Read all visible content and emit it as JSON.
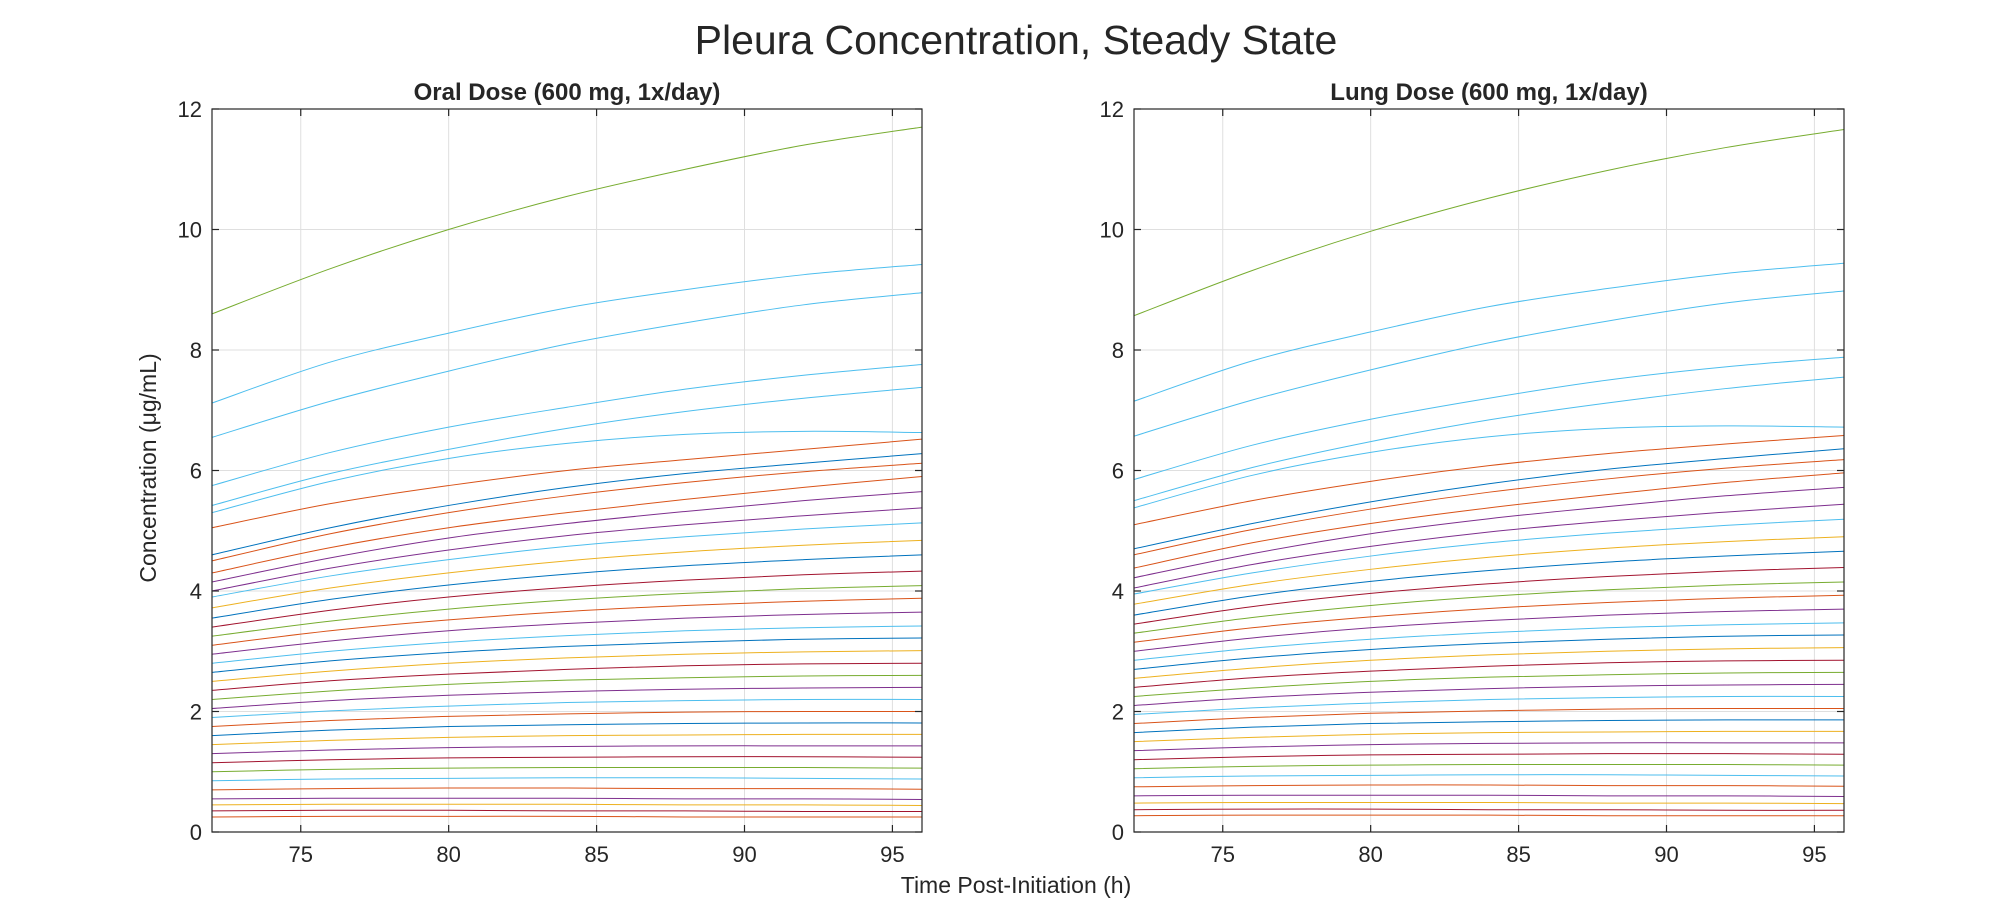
{
  "figure": {
    "title": "Pleura Concentration, Steady State",
    "xlabel": "Time Post-Initiation (h)",
    "ylabel": "Concentration  (μg/mL)"
  },
  "palette": [
    "#0072bd",
    "#d95319",
    "#edb120",
    "#7e2f8e",
    "#77ac30",
    "#4dbeee",
    "#a2142f"
  ],
  "chart_data": [
    {
      "type": "line",
      "title": "Oral Dose (600 mg, 1x/day)",
      "xlabel": "Time Post-Initiation (h)",
      "ylabel": "Concentration  (μg/mL)",
      "xlim": [
        72,
        96
      ],
      "ylim": [
        0,
        12
      ],
      "xticks": [
        75,
        80,
        85,
        90,
        95
      ],
      "yticks": [
        0,
        2,
        4,
        6,
        8,
        10,
        12
      ],
      "grid": true,
      "x": [
        72,
        76,
        80,
        84,
        88,
        92,
        96
      ],
      "series": [
        {
          "color": "#77ac30",
          "values": [
            8.6,
            9.35,
            10.0,
            10.55,
            11.0,
            11.4,
            11.7
          ]
        },
        {
          "color": "#4dbeee",
          "values": [
            7.12,
            7.8,
            8.28,
            8.7,
            9.0,
            9.25,
            9.42
          ]
        },
        {
          "color": "#4dbeee",
          "values": [
            6.55,
            7.15,
            7.65,
            8.1,
            8.45,
            8.75,
            8.95
          ]
        },
        {
          "color": "#4dbeee",
          "values": [
            5.75,
            6.3,
            6.72,
            7.05,
            7.35,
            7.58,
            7.76
          ]
        },
        {
          "color": "#4dbeee",
          "values": [
            5.42,
            5.95,
            6.35,
            6.7,
            6.98,
            7.2,
            7.38
          ]
        },
        {
          "color": "#4dbeee",
          "values": [
            5.3,
            5.82,
            6.2,
            6.45,
            6.6,
            6.65,
            6.63
          ]
        },
        {
          "color": "#d95319",
          "values": [
            5.05,
            5.45,
            5.75,
            6.0,
            6.18,
            6.35,
            6.52
          ]
        },
        {
          "color": "#0072bd",
          "values": [
            4.6,
            5.05,
            5.42,
            5.72,
            5.95,
            6.12,
            6.28
          ]
        },
        {
          "color": "#d95319",
          "values": [
            4.5,
            4.95,
            5.3,
            5.58,
            5.8,
            5.98,
            6.12
          ]
        },
        {
          "color": "#d95319",
          "values": [
            4.3,
            4.72,
            5.05,
            5.3,
            5.52,
            5.72,
            5.9
          ]
        },
        {
          "color": "#7e2f8e",
          "values": [
            4.15,
            4.55,
            4.88,
            5.12,
            5.32,
            5.5,
            5.65
          ]
        },
        {
          "color": "#7e2f8e",
          "values": [
            4.0,
            4.38,
            4.68,
            4.92,
            5.1,
            5.25,
            5.38
          ]
        },
        {
          "color": "#4dbeee",
          "values": [
            3.9,
            4.25,
            4.52,
            4.74,
            4.9,
            5.03,
            5.13
          ]
        },
        {
          "color": "#edb120",
          "values": [
            3.72,
            4.05,
            4.3,
            4.5,
            4.65,
            4.76,
            4.84
          ]
        },
        {
          "color": "#0072bd",
          "values": [
            3.55,
            3.86,
            4.1,
            4.28,
            4.42,
            4.52,
            4.6
          ]
        },
        {
          "color": "#a2142f",
          "values": [
            3.4,
            3.68,
            3.9,
            4.06,
            4.18,
            4.27,
            4.33
          ]
        },
        {
          "color": "#77ac30",
          "values": [
            3.25,
            3.5,
            3.7,
            3.85,
            3.96,
            4.04,
            4.09
          ]
        },
        {
          "color": "#d95319",
          "values": [
            3.1,
            3.34,
            3.52,
            3.66,
            3.76,
            3.83,
            3.88
          ]
        },
        {
          "color": "#7e2f8e",
          "values": [
            2.95,
            3.17,
            3.34,
            3.46,
            3.55,
            3.61,
            3.65
          ]
        },
        {
          "color": "#4dbeee",
          "values": [
            2.8,
            3.0,
            3.15,
            3.26,
            3.34,
            3.39,
            3.42
          ]
        },
        {
          "color": "#0072bd",
          "values": [
            2.65,
            2.84,
            2.98,
            3.08,
            3.15,
            3.2,
            3.22
          ]
        },
        {
          "color": "#edb120",
          "values": [
            2.5,
            2.67,
            2.8,
            2.89,
            2.95,
            2.99,
            3.01
          ]
        },
        {
          "color": "#a2142f",
          "values": [
            2.35,
            2.51,
            2.62,
            2.7,
            2.76,
            2.79,
            2.8
          ]
        },
        {
          "color": "#77ac30",
          "values": [
            2.2,
            2.34,
            2.45,
            2.52,
            2.56,
            2.59,
            2.6
          ]
        },
        {
          "color": "#7e2f8e",
          "values": [
            2.05,
            2.18,
            2.27,
            2.33,
            2.37,
            2.39,
            2.4
          ]
        },
        {
          "color": "#4dbeee",
          "values": [
            1.9,
            2.01,
            2.09,
            2.15,
            2.18,
            2.2,
            2.2
          ]
        },
        {
          "color": "#d95319",
          "values": [
            1.75,
            1.85,
            1.92,
            1.96,
            1.99,
            2.0,
            2.0
          ]
        },
        {
          "color": "#0072bd",
          "values": [
            1.6,
            1.69,
            1.75,
            1.78,
            1.8,
            1.81,
            1.81
          ]
        },
        {
          "color": "#edb120",
          "values": [
            1.45,
            1.52,
            1.57,
            1.6,
            1.61,
            1.62,
            1.62
          ]
        },
        {
          "color": "#7e2f8e",
          "values": [
            1.3,
            1.36,
            1.4,
            1.42,
            1.43,
            1.43,
            1.43
          ]
        },
        {
          "color": "#a2142f",
          "values": [
            1.15,
            1.2,
            1.23,
            1.24,
            1.25,
            1.25,
            1.24
          ]
        },
        {
          "color": "#77ac30",
          "values": [
            1.0,
            1.04,
            1.06,
            1.07,
            1.07,
            1.07,
            1.06
          ]
        },
        {
          "color": "#4dbeee",
          "values": [
            0.85,
            0.88,
            0.89,
            0.9,
            0.9,
            0.89,
            0.88
          ]
        },
        {
          "color": "#d95319",
          "values": [
            0.7,
            0.72,
            0.73,
            0.73,
            0.72,
            0.72,
            0.71
          ]
        },
        {
          "color": "#7e2f8e",
          "values": [
            0.55,
            0.56,
            0.56,
            0.56,
            0.55,
            0.55,
            0.54
          ]
        },
        {
          "color": "#edb120",
          "values": [
            0.45,
            0.46,
            0.46,
            0.46,
            0.45,
            0.45,
            0.44
          ]
        },
        {
          "color": "#a2142f",
          "values": [
            0.35,
            0.36,
            0.36,
            0.35,
            0.35,
            0.34,
            0.34
          ]
        },
        {
          "color": "#d95319",
          "values": [
            0.25,
            0.26,
            0.26,
            0.26,
            0.25,
            0.25,
            0.25
          ]
        }
      ]
    },
    {
      "type": "line",
      "title": "Lung Dose (600 mg, 1x/day)",
      "xlabel": "Time Post-Initiation (h)",
      "ylabel": "Concentration  (μg/mL)",
      "xlim": [
        72,
        96
      ],
      "ylim": [
        0,
        12
      ],
      "xticks": [
        75,
        80,
        85,
        90,
        95
      ],
      "yticks": [
        0,
        2,
        4,
        6,
        8,
        10,
        12
      ],
      "grid": true,
      "x": [
        72,
        76,
        80,
        84,
        88,
        92,
        96
      ],
      "series": [
        {
          "color": "#77ac30",
          "values": [
            8.57,
            9.32,
            9.97,
            10.52,
            10.98,
            11.36,
            11.66
          ]
        },
        {
          "color": "#4dbeee",
          "values": [
            7.15,
            7.82,
            8.3,
            8.72,
            9.02,
            9.27,
            9.44
          ]
        },
        {
          "color": "#4dbeee",
          "values": [
            6.57,
            7.17,
            7.67,
            8.12,
            8.48,
            8.78,
            8.98
          ]
        },
        {
          "color": "#4dbeee",
          "values": [
            5.85,
            6.42,
            6.85,
            7.2,
            7.5,
            7.72,
            7.88
          ]
        },
        {
          "color": "#4dbeee",
          "values": [
            5.5,
            6.05,
            6.48,
            6.84,
            7.12,
            7.36,
            7.55
          ]
        },
        {
          "color": "#4dbeee",
          "values": [
            5.38,
            5.92,
            6.3,
            6.56,
            6.7,
            6.74,
            6.72
          ]
        },
        {
          "color": "#d95319",
          "values": [
            5.1,
            5.5,
            5.82,
            6.08,
            6.28,
            6.44,
            6.58
          ]
        },
        {
          "color": "#0072bd",
          "values": [
            4.7,
            5.12,
            5.48,
            5.78,
            6.02,
            6.2,
            6.36
          ]
        },
        {
          "color": "#d95319",
          "values": [
            4.6,
            5.02,
            5.36,
            5.64,
            5.86,
            6.04,
            6.18
          ]
        },
        {
          "color": "#d95319",
          "values": [
            4.38,
            4.8,
            5.12,
            5.38,
            5.6,
            5.8,
            5.96
          ]
        },
        {
          "color": "#7e2f8e",
          "values": [
            4.22,
            4.62,
            4.95,
            5.2,
            5.4,
            5.58,
            5.72
          ]
        },
        {
          "color": "#7e2f8e",
          "values": [
            4.05,
            4.44,
            4.74,
            4.98,
            5.16,
            5.31,
            5.44
          ]
        },
        {
          "color": "#4dbeee",
          "values": [
            3.95,
            4.3,
            4.58,
            4.8,
            4.96,
            5.09,
            5.19
          ]
        },
        {
          "color": "#edb120",
          "values": [
            3.78,
            4.11,
            4.36,
            4.56,
            4.71,
            4.82,
            4.9
          ]
        },
        {
          "color": "#0072bd",
          "values": [
            3.6,
            3.92,
            4.16,
            4.34,
            4.48,
            4.58,
            4.66
          ]
        },
        {
          "color": "#a2142f",
          "values": [
            3.45,
            3.74,
            3.96,
            4.12,
            4.24,
            4.33,
            4.39
          ]
        },
        {
          "color": "#77ac30",
          "values": [
            3.3,
            3.56,
            3.76,
            3.91,
            4.02,
            4.1,
            4.15
          ]
        },
        {
          "color": "#d95319",
          "values": [
            3.15,
            3.39,
            3.57,
            3.71,
            3.81,
            3.88,
            3.93
          ]
        },
        {
          "color": "#7e2f8e",
          "values": [
            3.0,
            3.22,
            3.39,
            3.51,
            3.6,
            3.66,
            3.7
          ]
        },
        {
          "color": "#4dbeee",
          "values": [
            2.85,
            3.05,
            3.2,
            3.31,
            3.39,
            3.44,
            3.47
          ]
        },
        {
          "color": "#0072bd",
          "values": [
            2.7,
            2.89,
            3.03,
            3.13,
            3.2,
            3.25,
            3.27
          ]
        },
        {
          "color": "#edb120",
          "values": [
            2.55,
            2.72,
            2.85,
            2.94,
            3.0,
            3.04,
            3.06
          ]
        },
        {
          "color": "#a2142f",
          "values": [
            2.4,
            2.56,
            2.67,
            2.75,
            2.81,
            2.84,
            2.85
          ]
        },
        {
          "color": "#77ac30",
          "values": [
            2.25,
            2.39,
            2.5,
            2.57,
            2.61,
            2.64,
            2.65
          ]
        },
        {
          "color": "#7e2f8e",
          "values": [
            2.1,
            2.23,
            2.32,
            2.38,
            2.42,
            2.44,
            2.45
          ]
        },
        {
          "color": "#4dbeee",
          "values": [
            1.95,
            2.06,
            2.14,
            2.2,
            2.23,
            2.25,
            2.25
          ]
        },
        {
          "color": "#d95319",
          "values": [
            1.8,
            1.9,
            1.97,
            2.01,
            2.04,
            2.05,
            2.05
          ]
        },
        {
          "color": "#0072bd",
          "values": [
            1.65,
            1.74,
            1.8,
            1.83,
            1.85,
            1.86,
            1.86
          ]
        },
        {
          "color": "#edb120",
          "values": [
            1.5,
            1.57,
            1.62,
            1.65,
            1.66,
            1.67,
            1.67
          ]
        },
        {
          "color": "#7e2f8e",
          "values": [
            1.35,
            1.41,
            1.45,
            1.47,
            1.48,
            1.48,
            1.48
          ]
        },
        {
          "color": "#a2142f",
          "values": [
            1.2,
            1.25,
            1.28,
            1.29,
            1.3,
            1.3,
            1.29
          ]
        },
        {
          "color": "#77ac30",
          "values": [
            1.05,
            1.09,
            1.11,
            1.12,
            1.12,
            1.12,
            1.11
          ]
        },
        {
          "color": "#4dbeee",
          "values": [
            0.9,
            0.93,
            0.94,
            0.95,
            0.95,
            0.94,
            0.93
          ]
        },
        {
          "color": "#d95319",
          "values": [
            0.75,
            0.77,
            0.78,
            0.78,
            0.77,
            0.77,
            0.76
          ]
        },
        {
          "color": "#7e2f8e",
          "values": [
            0.6,
            0.61,
            0.61,
            0.61,
            0.6,
            0.6,
            0.59
          ]
        },
        {
          "color": "#edb120",
          "values": [
            0.48,
            0.49,
            0.49,
            0.49,
            0.48,
            0.48,
            0.47
          ]
        },
        {
          "color": "#a2142f",
          "values": [
            0.37,
            0.38,
            0.38,
            0.37,
            0.37,
            0.36,
            0.36
          ]
        },
        {
          "color": "#d95319",
          "values": [
            0.27,
            0.28,
            0.28,
            0.28,
            0.27,
            0.27,
            0.27
          ]
        }
      ]
    }
  ]
}
